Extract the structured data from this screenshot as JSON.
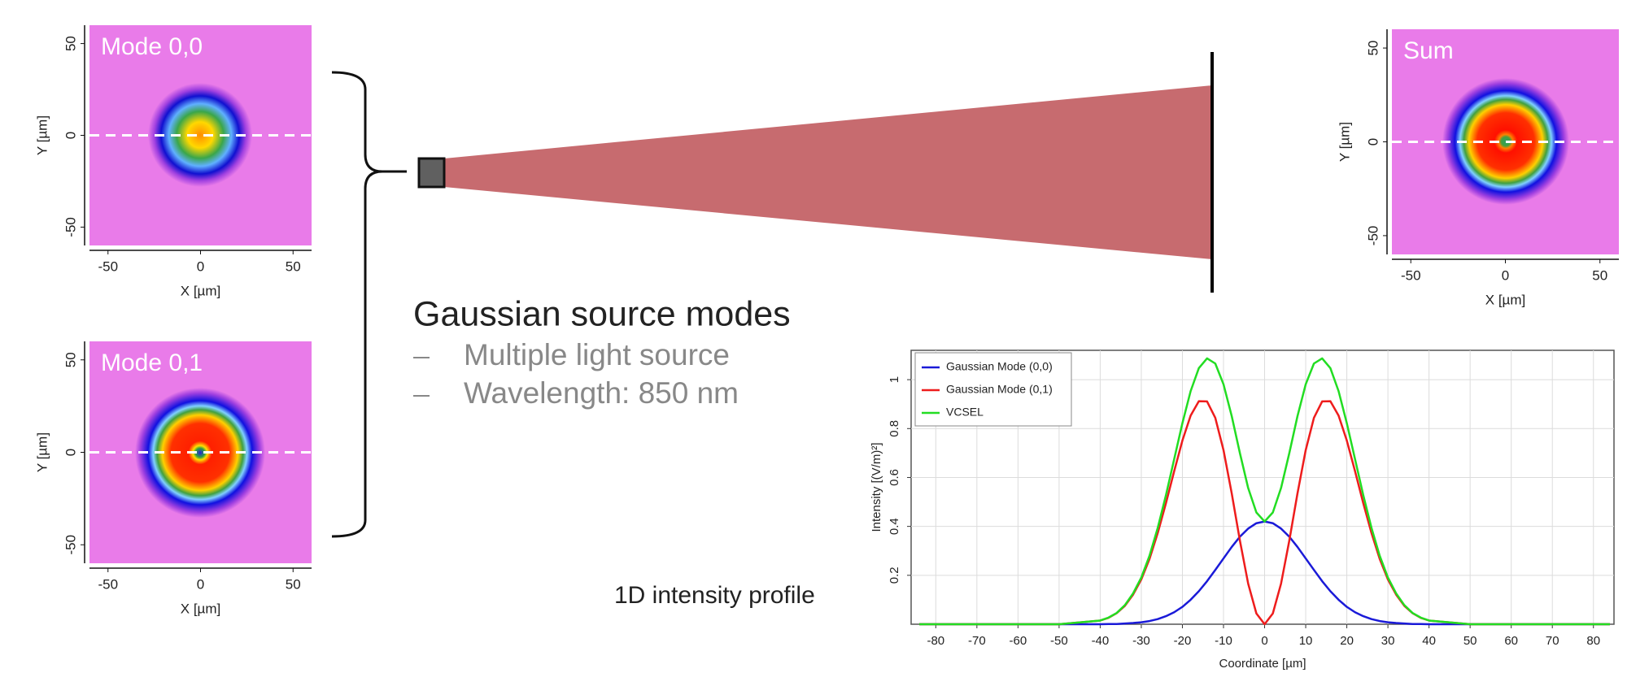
{
  "slide": {
    "heading": "Gaussian source modes",
    "bullets": [
      "Multiple light source",
      "Wavelength: 850 nm"
    ],
    "caption": "1D intensity profile"
  },
  "chart_data": [
    {
      "type": "heatmap",
      "title": "Mode 0,0",
      "x_label": "X [µm]",
      "y_label": "Y [µm]",
      "xlim": [
        -60,
        60
      ],
      "ylim": [
        -60,
        60
      ],
      "xticks": [
        -50,
        0,
        50
      ],
      "yticks": [
        -50,
        0,
        50
      ]
    },
    {
      "type": "heatmap",
      "title": "Mode 0,1",
      "x_label": "X [µm]",
      "y_label": "Y [µm]",
      "xlim": [
        -60,
        60
      ],
      "ylim": [
        -60,
        60
      ],
      "xticks": [
        -50,
        0,
        50
      ],
      "yticks": [
        -50,
        0,
        50
      ]
    },
    {
      "type": "heatmap",
      "title": "Sum",
      "x_label": "X [µm]",
      "y_label": "Y [µm]",
      "xlim": [
        -60,
        60
      ],
      "ylim": [
        -60,
        60
      ],
      "xticks": [
        -50,
        0,
        50
      ],
      "yticks": [
        -50,
        0,
        50
      ]
    },
    {
      "type": "line",
      "x_label": "Coordinate [µm]",
      "y_label": "Intensity [(V/m)²]",
      "xlim": [
        -86,
        85
      ],
      "ylim": [
        0,
        1.12
      ],
      "xticks": [
        -80,
        -70,
        -60,
        -50,
        -40,
        -30,
        -20,
        -10,
        0,
        10,
        20,
        30,
        40,
        50,
        60,
        70,
        80
      ],
      "yticks": [
        0.2,
        0.4,
        0.6,
        0.8,
        1
      ],
      "grid": true,
      "legend": "upper left",
      "x": [
        -84,
        -50,
        -40,
        -38,
        -36,
        -34,
        -32,
        -30,
        -28,
        -26,
        -24,
        -22,
        -20,
        -18,
        -16,
        -14,
        -12,
        -10,
        -8,
        -6,
        -4,
        -2,
        0,
        2,
        4,
        6,
        8,
        10,
        12,
        14,
        16,
        18,
        20,
        22,
        24,
        26,
        28,
        30,
        32,
        34,
        36,
        38,
        40,
        50,
        84
      ],
      "series": [
        {
          "name": "Gaussian Mode (0,0)",
          "color": "#1a1ad8",
          "values": [
            0,
            0,
            0,
            0.001,
            0.001,
            0.003,
            0.005,
            0.008,
            0.013,
            0.021,
            0.033,
            0.049,
            0.071,
            0.1,
            0.135,
            0.176,
            0.222,
            0.269,
            0.316,
            0.358,
            0.391,
            0.413,
            0.42,
            0.413,
            0.391,
            0.358,
            0.316,
            0.269,
            0.222,
            0.176,
            0.135,
            0.1,
            0.071,
            0.049,
            0.033,
            0.021,
            0.013,
            0.008,
            0.005,
            0.003,
            0.001,
            0.001,
            0,
            0,
            0
          ]
        },
        {
          "name": "Gaussian Mode (0,1)",
          "color": "#ee1c1c",
          "values": [
            0,
            0,
            0.015,
            0.026,
            0.045,
            0.075,
            0.121,
            0.183,
            0.267,
            0.373,
            0.495,
            0.626,
            0.751,
            0.853,
            0.912,
            0.911,
            0.844,
            0.712,
            0.535,
            0.341,
            0.166,
            0.044,
            0,
            0.044,
            0.166,
            0.341,
            0.535,
            0.712,
            0.844,
            0.911,
            0.912,
            0.853,
            0.751,
            0.626,
            0.495,
            0.373,
            0.267,
            0.183,
            0.121,
            0.075,
            0.045,
            0.026,
            0.015,
            0,
            0
          ]
        },
        {
          "name": "VCSEL",
          "color": "#22dd22",
          "values": [
            0,
            0,
            0.015,
            0.027,
            0.046,
            0.078,
            0.126,
            0.191,
            0.28,
            0.394,
            0.528,
            0.675,
            0.822,
            0.953,
            1.047,
            1.087,
            1.066,
            0.981,
            0.851,
            0.699,
            0.557,
            0.457,
            0.42,
            0.457,
            0.557,
            0.699,
            0.851,
            0.981,
            1.066,
            1.087,
            1.047,
            0.953,
            0.822,
            0.675,
            0.528,
            0.394,
            0.28,
            0.191,
            0.126,
            0.078,
            0.046,
            0.027,
            0.015,
            0,
            0
          ]
        }
      ]
    }
  ]
}
